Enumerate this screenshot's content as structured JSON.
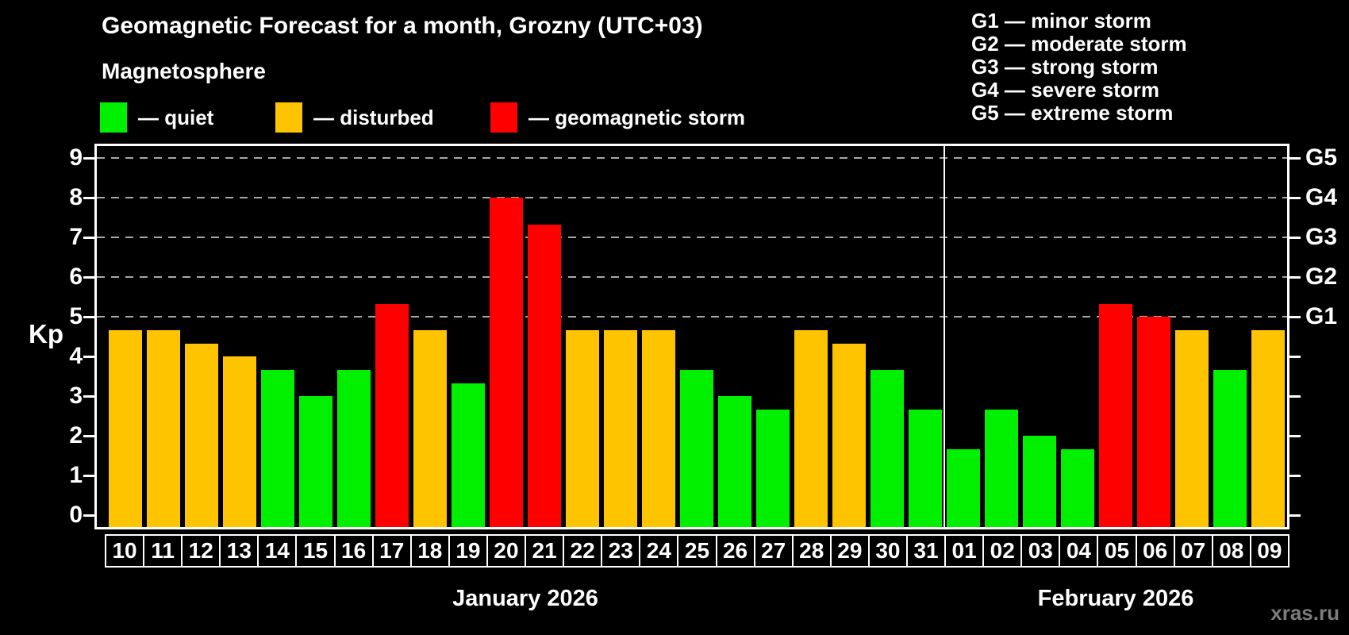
{
  "title": "Geomagnetic Forecast for a month, Grozny (UTC+03)",
  "subtitle": "Magnetosphere",
  "legend": {
    "items": [
      {
        "state": "quiet",
        "label": "— quiet"
      },
      {
        "state": "disturbed",
        "label": "— disturbed"
      },
      {
        "state": "storm",
        "label": "— geomagnetic storm"
      }
    ]
  },
  "storm_scale_legend": [
    "G1 — minor storm",
    "G2 — moderate storm",
    "G3 — strong storm",
    "G4 — severe storm",
    "G5 — extreme storm"
  ],
  "watermark": "xras.ru",
  "chart_data": {
    "type": "bar",
    "title": "Geomagnetic Forecast for a month, Grozny (UTC+03)",
    "xlabel": "",
    "ylabel": "Kp",
    "ylim": [
      -0.3,
      9.3
    ],
    "yticks": [
      0,
      1,
      2,
      3,
      4,
      5,
      6,
      7,
      8,
      9
    ],
    "gridlines_at": [
      5,
      6,
      7,
      8,
      9
    ],
    "right_axis": {
      "5": "G1",
      "6": "G2",
      "7": "G3",
      "8": "G4",
      "9": "G5"
    },
    "legend_position": "top",
    "months": [
      {
        "label": "January 2026",
        "days": 22
      },
      {
        "label": "February 2026",
        "days": 9
      }
    ],
    "categories": [
      "10",
      "11",
      "12",
      "13",
      "14",
      "15",
      "16",
      "17",
      "18",
      "19",
      "20",
      "21",
      "22",
      "23",
      "24",
      "25",
      "26",
      "27",
      "28",
      "29",
      "30",
      "31",
      "01",
      "02",
      "03",
      "04",
      "05",
      "06",
      "07",
      "08",
      "09"
    ],
    "values": [
      4.67,
      4.67,
      4.33,
      4.0,
      3.67,
      3.0,
      3.67,
      5.33,
      4.67,
      3.33,
      8.0,
      7.33,
      4.67,
      4.67,
      4.67,
      3.67,
      3.0,
      2.67,
      4.67,
      4.33,
      3.67,
      2.67,
      1.67,
      2.67,
      2.0,
      1.67,
      5.33,
      5.0,
      4.67,
      3.67,
      4.67
    ],
    "states": [
      "disturbed",
      "disturbed",
      "disturbed",
      "disturbed",
      "quiet",
      "quiet",
      "quiet",
      "storm",
      "disturbed",
      "quiet",
      "storm",
      "storm",
      "disturbed",
      "disturbed",
      "disturbed",
      "quiet",
      "quiet",
      "quiet",
      "disturbed",
      "disturbed",
      "quiet",
      "quiet",
      "quiet",
      "quiet",
      "quiet",
      "quiet",
      "storm",
      "storm",
      "disturbed",
      "quiet",
      "disturbed"
    ],
    "state_colors": {
      "quiet": "#00F000",
      "disturbed": "#FFC400",
      "storm": "#FF0000"
    }
  }
}
